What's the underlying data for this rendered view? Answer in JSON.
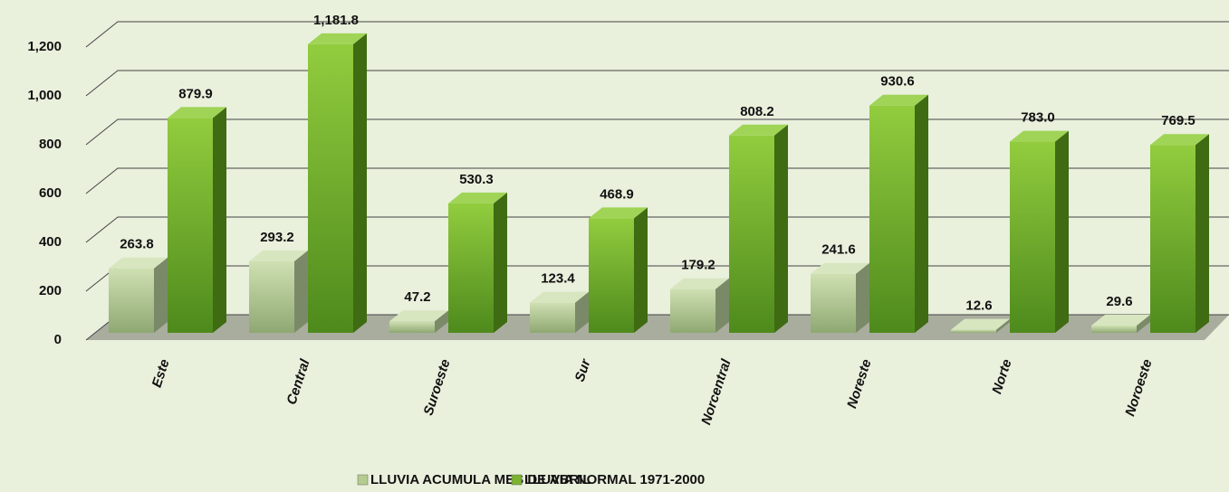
{
  "chart_data": {
    "type": "bar3d",
    "categories": [
      "Este",
      "Central",
      "Suroeste",
      "Sur",
      "Norcentral",
      "Noreste",
      "Norte",
      "Noroeste"
    ],
    "series": [
      {
        "name": "LLUVIA ACUMULA MES DE ABRIL",
        "color": "#b4cc8e",
        "values": [
          263.8,
          293.2,
          47.2,
          123.4,
          179.2,
          241.6,
          12.6,
          29.6
        ],
        "value_labels": [
          "263.8",
          "293.2",
          "47.2",
          "123.4",
          "179.2",
          "241.6",
          "12.6",
          "29.6"
        ]
      },
      {
        "name": "LLUVIA NORMAL 1971-2000",
        "color": "#7ab32e",
        "values": [
          879.9,
          1181.8,
          530.3,
          468.9,
          808.2,
          930.6,
          783.0,
          769.5
        ],
        "value_labels": [
          "879.9",
          "1,181.8",
          "530.3",
          "468.9",
          "808.2",
          "930.6",
          "783.0",
          "769.5"
        ]
      }
    ],
    "ylim": [
      0,
      1400
    ],
    "yticks": [
      0,
      200,
      400,
      600,
      800,
      {
        "value": 1000,
        "label": "1,000"
      },
      {
        "value": 1200,
        "label": "1,200"
      }
    ],
    "grid": true
  }
}
